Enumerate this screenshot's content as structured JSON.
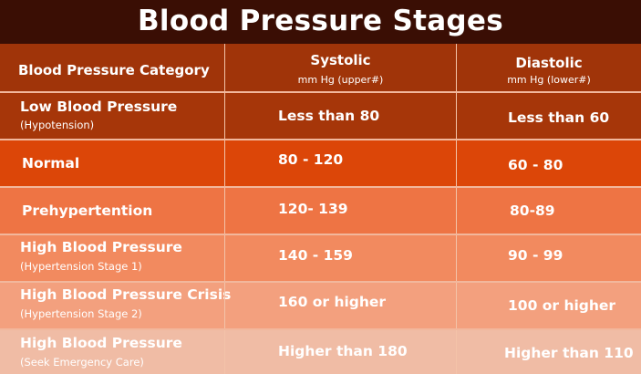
{
  "title": "Blood Pressure Stages",
  "header": {
    "category": "Blood Pressure Category",
    "systolic": "Systolic",
    "systolic_unit": "mm Hg (upper#)",
    "diastolic": "Diastolic",
    "diastolic_unit": "mm Hg (lower#)"
  },
  "rows": [
    {
      "category": "Low Blood Pressure",
      "note": "(Hypotension)",
      "systolic": "Less than 80",
      "diastolic": "Less than 60"
    },
    {
      "category": "Normal",
      "note": "",
      "systolic": "80 - 120",
      "diastolic": "60 - 80"
    },
    {
      "category": "Prehypertention",
      "note": "",
      "systolic": "120- 139",
      "diastolic": "80-89"
    },
    {
      "category": "High Blood Pressure",
      "note": "(Hypertension Stage 1)",
      "systolic": "140 - 159",
      "diastolic": "90 - 99"
    },
    {
      "category": "High Blood Pressure Crisis",
      "note": "(Hypertension Stage 2)",
      "systolic": "160 or higher",
      "diastolic": "100 or higher"
    },
    {
      "category": "High Blood Pressure",
      "note": "(Seek Emergency Care)",
      "systolic": "Higher than 180",
      "diastolic": "Higher than 110"
    }
  ],
  "colors": {
    "title_bg": "#3a0e04",
    "header_bg": "#a03409",
    "row_backgrounds": [
      "#a63609",
      "#dc4608",
      "#ee7444",
      "#f28a5f",
      "#f3a07e",
      "#f0bca5"
    ],
    "text": "#ffffff"
  }
}
